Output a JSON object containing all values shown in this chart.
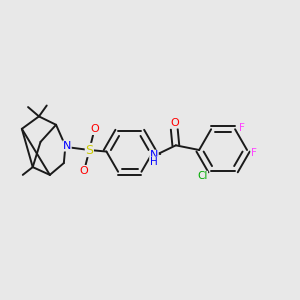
{
  "bg_color": "#e8e8e8",
  "bond_color": "#1a1a1a",
  "bond_width": 1.4,
  "atom_colors": {
    "O": "#ff0000",
    "N": "#0000ff",
    "S": "#cccc00",
    "Cl": "#00aa00",
    "F": "#ff44ff",
    "NH": "#0000ff",
    "C": "#1a1a1a"
  },
  "font_size": 7.5
}
